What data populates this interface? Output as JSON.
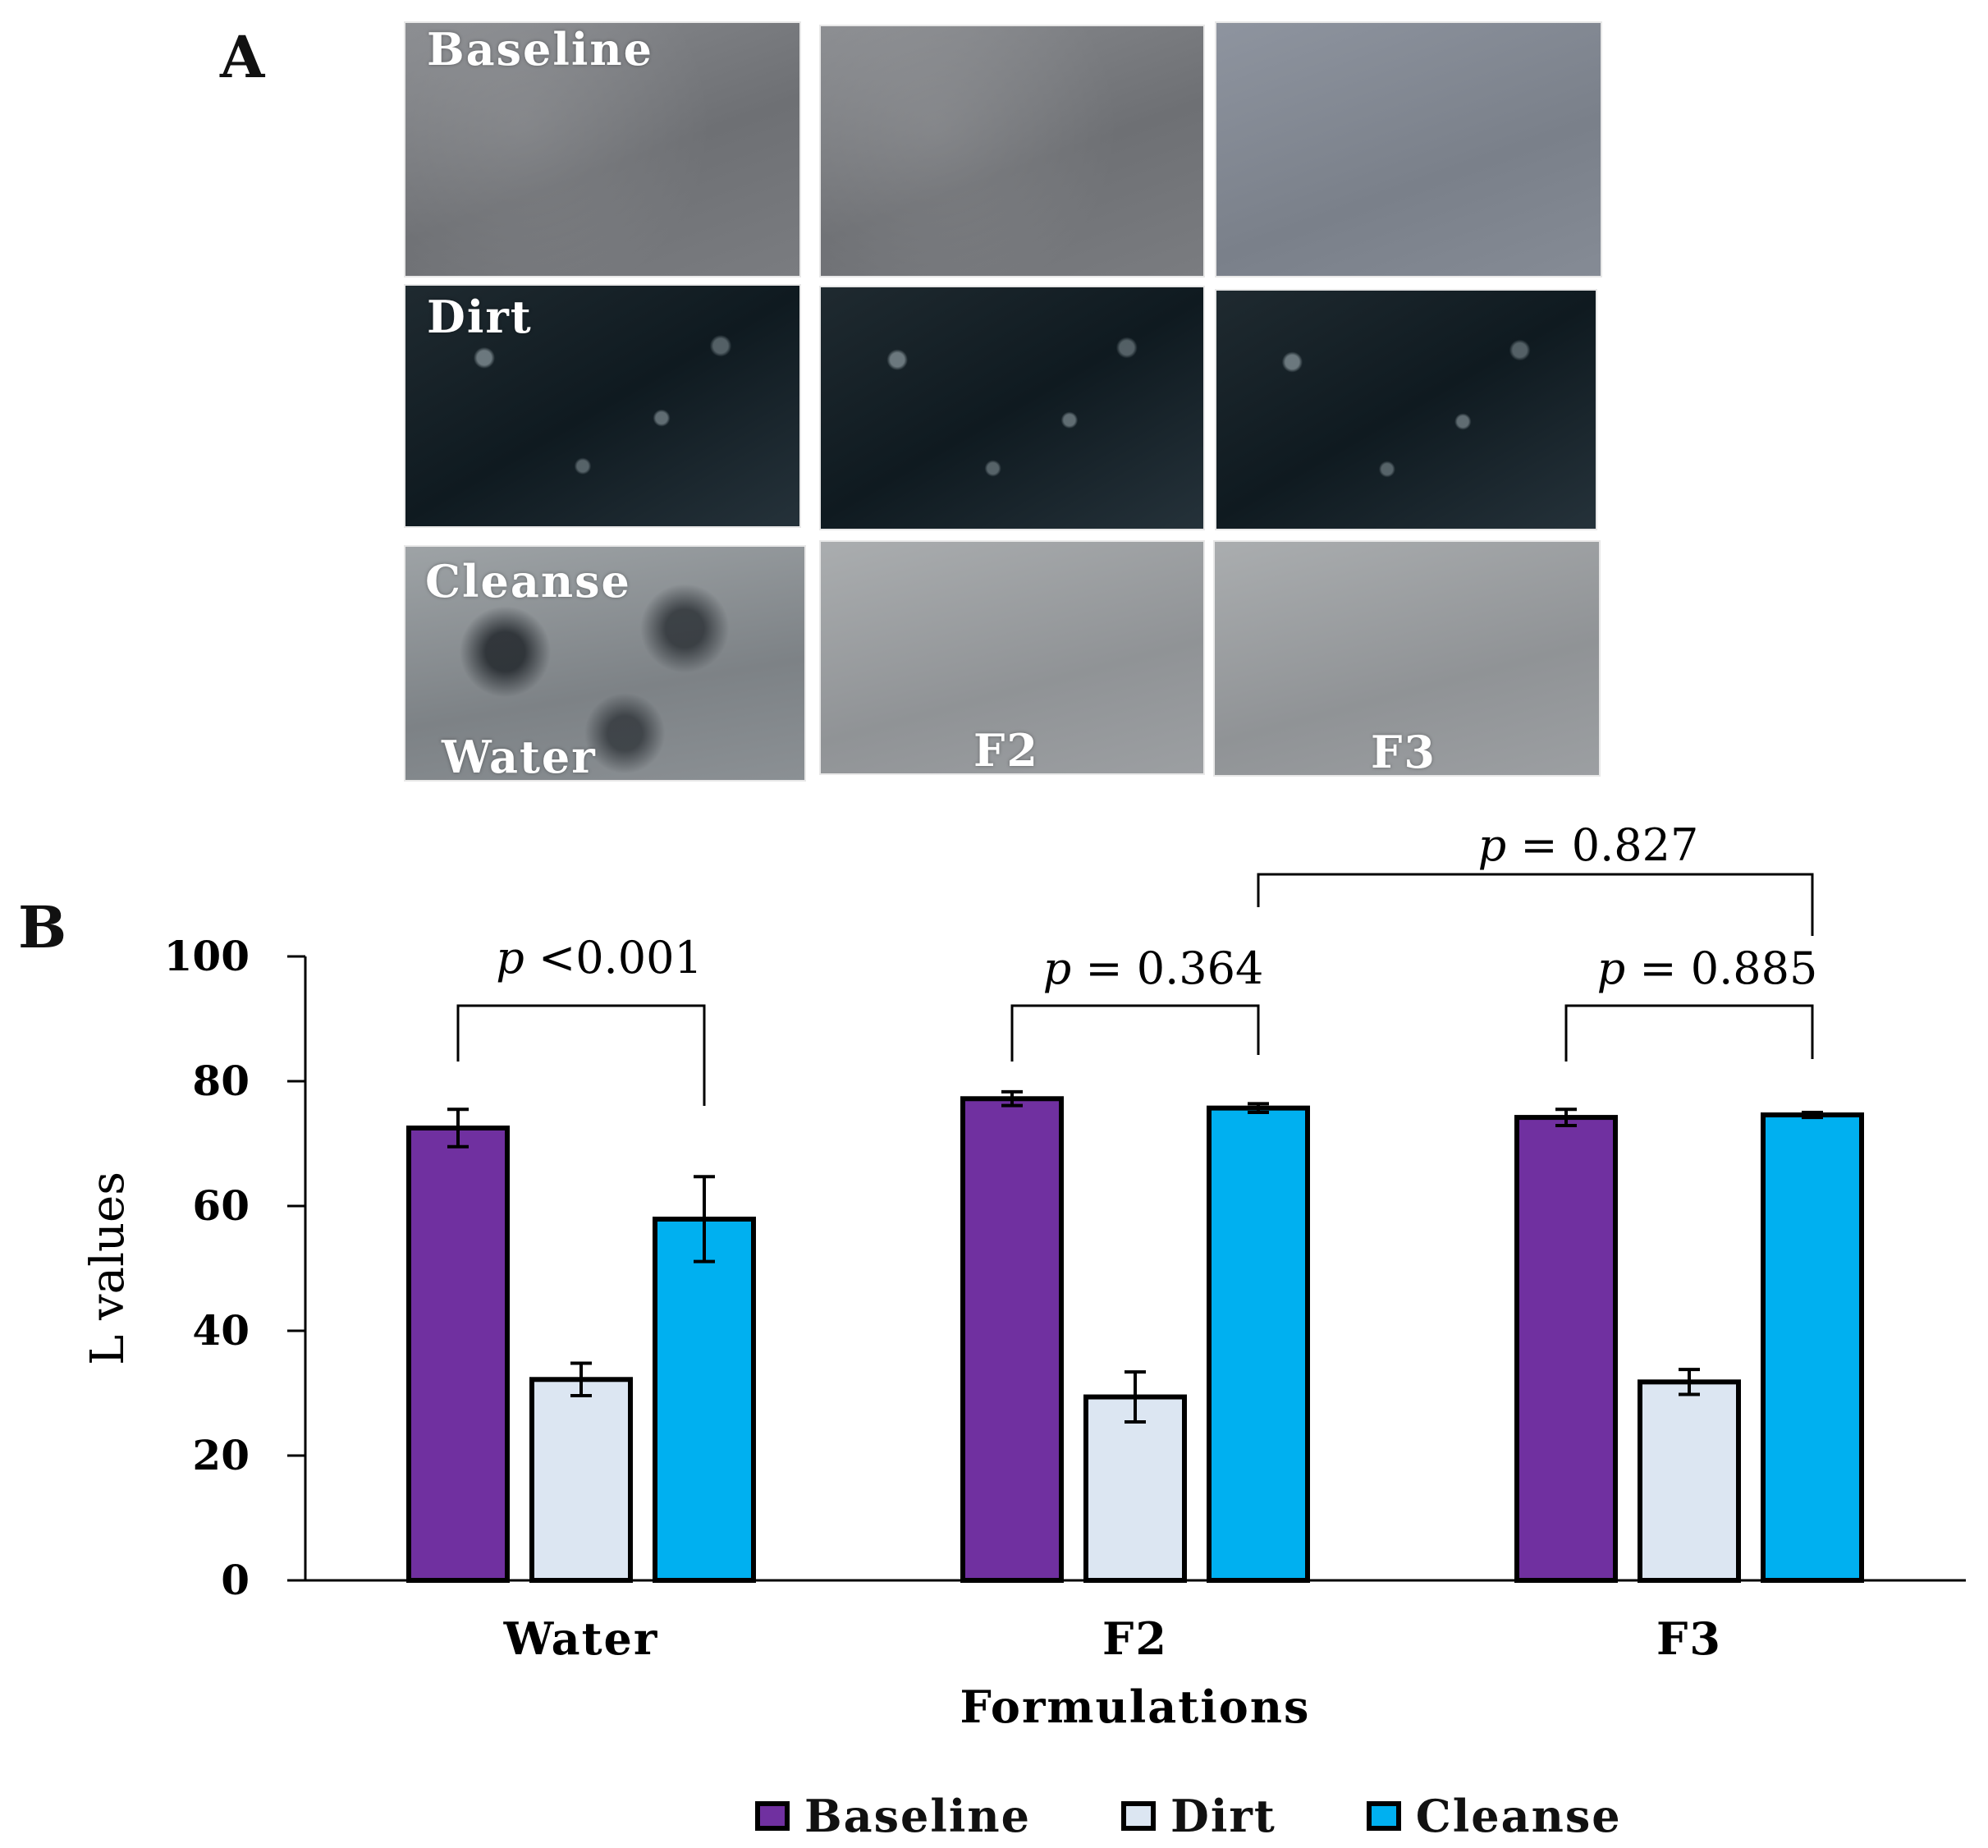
{
  "panel_a": {
    "letter": "A",
    "row_labels": [
      "Baseline",
      "Dirt",
      "Cleanse"
    ],
    "column_labels": [
      "Water",
      "F2",
      "F3"
    ]
  },
  "panel_b": {
    "letter": "B"
  },
  "colors": {
    "baseline": "#7030a0",
    "dirt": "#dce6f2",
    "cleanse": "#00b0f0"
  },
  "chart_data": {
    "type": "bar",
    "title": "",
    "xlabel": "Formulations",
    "ylabel": "L values",
    "categories": [
      "Water",
      "F2",
      "F3"
    ],
    "ylim": [
      0,
      100
    ],
    "yticks": [
      0,
      20,
      40,
      60,
      80,
      100
    ],
    "series": [
      {
        "name": "Baseline",
        "values": [
          72.5,
          77.2,
          74.2
        ],
        "errors": [
          3.0,
          1.1,
          1.3
        ]
      },
      {
        "name": "Dirt",
        "values": [
          32.2,
          29.4,
          31.8
        ],
        "errors": [
          2.6,
          4.0,
          2.0
        ]
      },
      {
        "name": "Cleanse",
        "values": [
          57.9,
          75.7,
          74.6
        ],
        "errors": [
          6.8,
          0.7,
          0.4
        ]
      }
    ],
    "grid": false,
    "legend": "bottom",
    "annotations": [
      {
        "text": "p <0.001",
        "from": "Water Baseline",
        "to": "Water Cleanse"
      },
      {
        "text": "p = 0.364",
        "from": "F2 Baseline",
        "to": "F2 Cleanse"
      },
      {
        "text": "p = 0.885",
        "from": "F3 Baseline",
        "to": "F3 Cleanse"
      },
      {
        "text": "p = 0.827",
        "from": "F2 Cleanse",
        "to": "F3 Cleanse"
      }
    ]
  }
}
